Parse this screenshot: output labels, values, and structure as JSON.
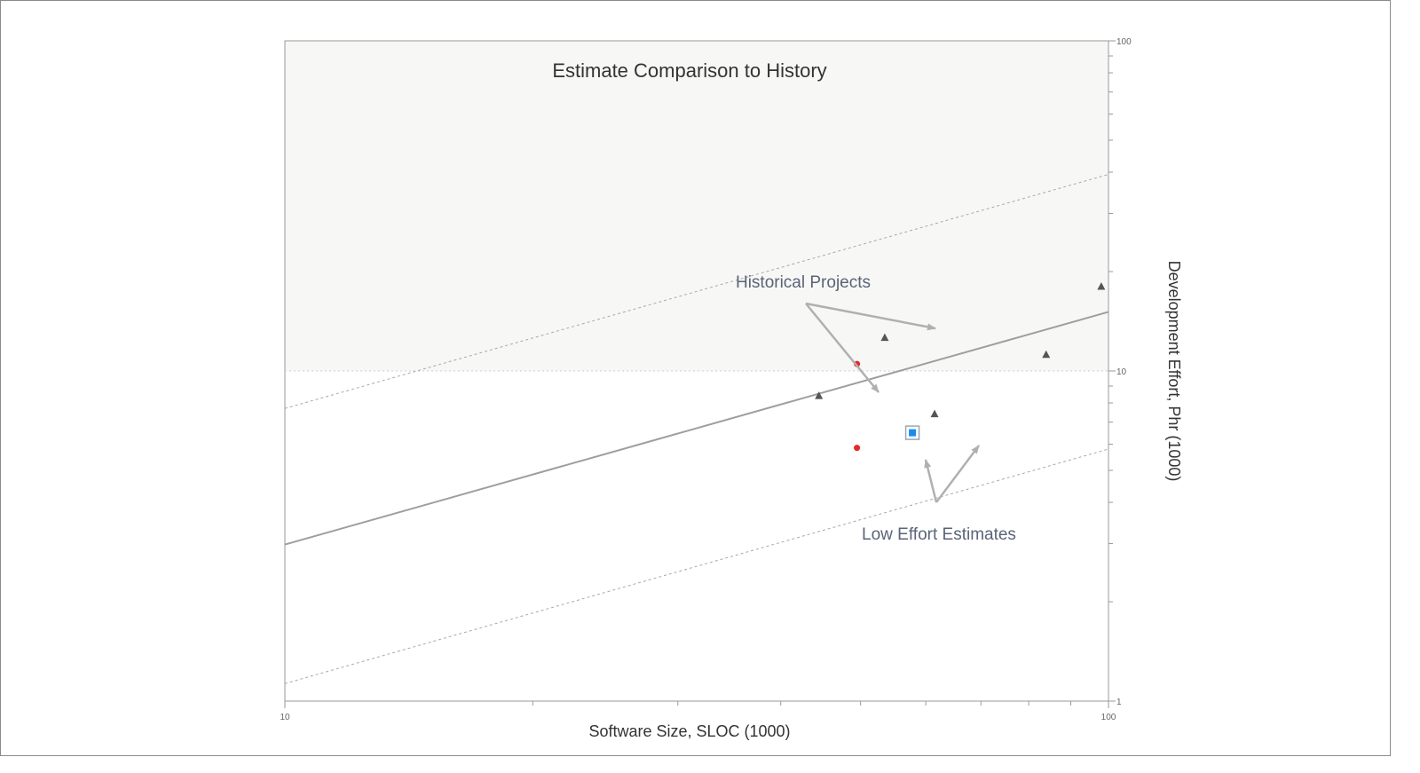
{
  "chart_data": {
    "type": "scatter",
    "title": "Estimate Comparison to History",
    "xlabel": "Software Size, SLOC (1000)",
    "ylabel": "Development Effort, Phr (1000)",
    "x_scale": "log",
    "y_scale": "log",
    "xlim": [
      10,
      100
    ],
    "ylim": [
      1,
      100
    ],
    "x_ticks": [
      "10",
      "100"
    ],
    "y_ticks": [
      "100",
      "10",
      "1"
    ],
    "annotations": [
      "Historical Projects",
      "Low Effort Estimates"
    ],
    "historical_projects": [
      {
        "x": 44.5,
        "y": 8.4
      },
      {
        "x": 53.5,
        "y": 12.6
      },
      {
        "x": 61.5,
        "y": 7.4
      },
      {
        "x": 84,
        "y": 11.2
      },
      {
        "x": 98,
        "y": 18
      }
    ],
    "estimates_red": [
      {
        "x": 49.5,
        "y": 10.5
      },
      {
        "x": 49.5,
        "y": 5.85
      }
    ],
    "estimate_blue": {
      "x": 57.8,
      "y": 6.5
    },
    "trend_line": {
      "x": [
        10,
        100
      ],
      "y": [
        2.98,
        15.1
      ]
    },
    "upper_bound_line": {
      "x": [
        10,
        100
      ],
      "y": [
        7.7,
        39.4
      ]
    },
    "lower_bound_line": {
      "x": [
        10,
        100
      ],
      "y": [
        1.13,
        5.8
      ]
    },
    "reference_level": 10,
    "colors": {
      "upper_shade": "#f7f7f6",
      "trend": "#9e9e9e",
      "bounds": "#a8a8a8",
      "historical": "#555555",
      "estimate_red": "#e8272a",
      "estimate_blue": "#1a8cf0",
      "arrow": "#b0b0b0"
    }
  }
}
